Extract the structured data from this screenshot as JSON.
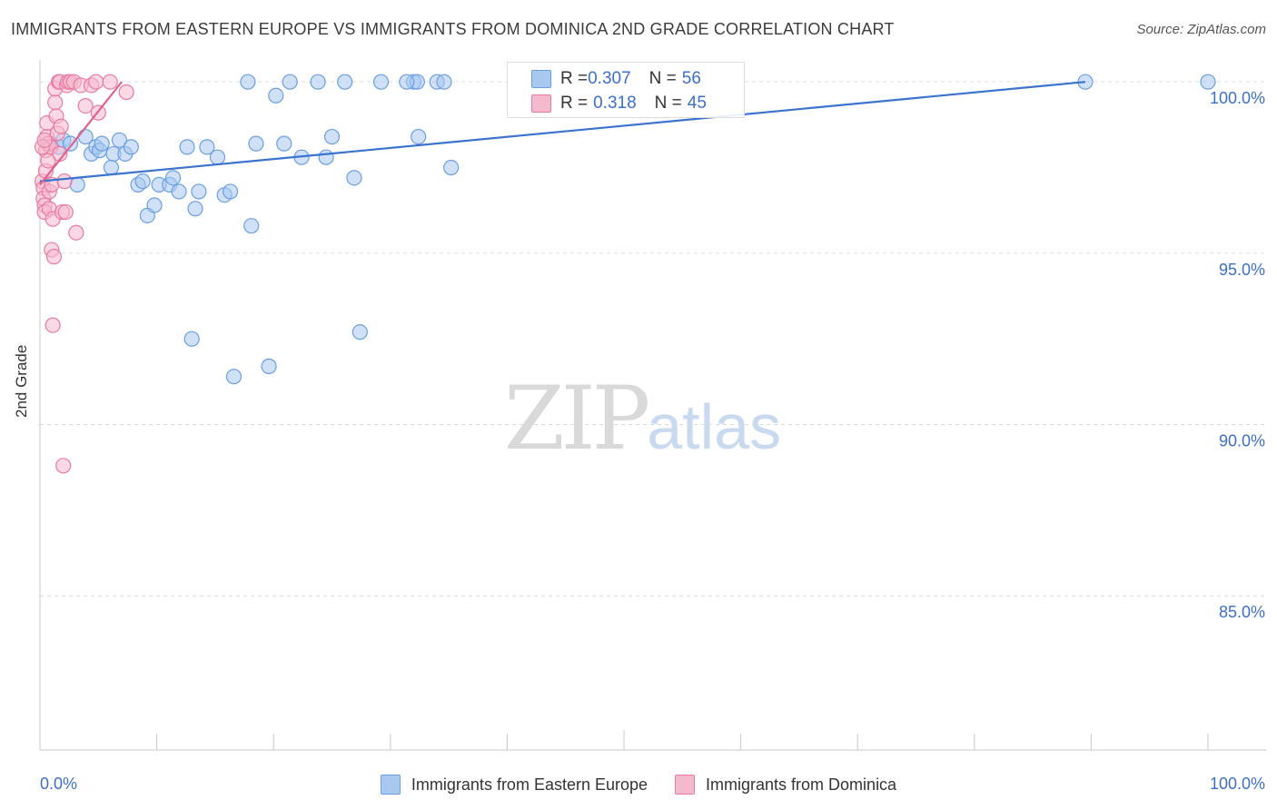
{
  "title": "IMMIGRANTS FROM EASTERN EUROPE VS IMMIGRANTS FROM DOMINICA 2ND GRADE CORRELATION CHART",
  "source": "Source: ZipAtlas.com",
  "watermark": {
    "zip": "ZIP",
    "atlas": "atlas"
  },
  "colors": {
    "blue": "#6a9fe3",
    "blue_fill": "#a9c8f0",
    "pink": "#ea7aa0",
    "pink_fill": "#f5b9cd",
    "trend_blue": "#3b73cf",
    "trend_pink": "#e0608e",
    "axis_text": "#3d6fc8"
  },
  "legend_top": {
    "rows": [
      {
        "r_label": "R = ",
        "r_value": "0.307",
        "n_label": "N = ",
        "n_value": "56"
      },
      {
        "r_label": "R = ",
        "r_value": "0.318",
        "n_label": "N = ",
        "n_value": "45"
      }
    ]
  },
  "chart_data": {
    "type": "scatter",
    "title": "IMMIGRANTS FROM EASTERN EUROPE VS IMMIGRANTS FROM DOMINICA 2ND GRADE CORRELATION CHART",
    "xlabel": "",
    "ylabel": "2nd Grade",
    "xlim": [
      0,
      100
    ],
    "ylim": [
      80.5,
      100.8
    ],
    "x_tick_labels": [
      "0.0%",
      "100.0%"
    ],
    "y_ticks": [
      100,
      95,
      90,
      85
    ],
    "y_tick_labels": [
      "100.0%",
      "95.0%",
      "90.0%",
      "85.0%"
    ],
    "grid": true,
    "series": [
      {
        "name": "Immigrants from Eastern Europe",
        "color": "#6a9fe3",
        "trend": {
          "x0": 0,
          "y0": 97.1,
          "x1": 89.5,
          "y1": 100.0
        },
        "points": [
          [
            0.9,
            98.2
          ],
          [
            1.6,
            98.1
          ],
          [
            2.0,
            98.3
          ],
          [
            2.6,
            98.2
          ],
          [
            3.2,
            97.0
          ],
          [
            3.9,
            98.4
          ],
          [
            4.4,
            97.9
          ],
          [
            4.8,
            98.1
          ],
          [
            5.1,
            98.0
          ],
          [
            5.3,
            98.2
          ],
          [
            6.1,
            97.5
          ],
          [
            6.3,
            97.9
          ],
          [
            6.8,
            98.3
          ],
          [
            7.3,
            97.9
          ],
          [
            7.8,
            98.1
          ],
          [
            8.4,
            97.0
          ],
          [
            8.8,
            97.1
          ],
          [
            9.2,
            96.1
          ],
          [
            9.8,
            96.4
          ],
          [
            10.2,
            97.0
          ],
          [
            11.1,
            97.0
          ],
          [
            11.4,
            97.2
          ],
          [
            11.9,
            96.8
          ],
          [
            12.6,
            98.1
          ],
          [
            13.0,
            92.5
          ],
          [
            13.3,
            96.3
          ],
          [
            13.6,
            96.8
          ],
          [
            14.3,
            98.1
          ],
          [
            15.2,
            97.8
          ],
          [
            15.8,
            96.7
          ],
          [
            16.3,
            96.8
          ],
          [
            16.6,
            91.4
          ],
          [
            18.1,
            95.8
          ],
          [
            18.5,
            98.2
          ],
          [
            19.6,
            91.7
          ],
          [
            20.2,
            99.6
          ],
          [
            20.9,
            98.2
          ],
          [
            21.4,
            100.0
          ],
          [
            22.4,
            97.8
          ],
          [
            24.5,
            97.8
          ],
          [
            25.0,
            98.4
          ],
          [
            26.1,
            100.0
          ],
          [
            26.9,
            97.2
          ],
          [
            27.4,
            92.7
          ],
          [
            29.2,
            100.0
          ],
          [
            32.0,
            100.0
          ],
          [
            32.3,
            100.0
          ],
          [
            32.4,
            98.4
          ],
          [
            34.0,
            100.0
          ],
          [
            34.6,
            100.0
          ],
          [
            35.2,
            97.5
          ],
          [
            17.8,
            100.0
          ],
          [
            23.8,
            100.0
          ],
          [
            31.4,
            100.0
          ],
          [
            89.5,
            100.0
          ],
          [
            100.0,
            100.0
          ]
        ]
      },
      {
        "name": "Immigrants from Dominica",
        "color": "#ea7aa0",
        "trend": {
          "x0": 0,
          "y0": 97.0,
          "x1": 7.0,
          "y1": 100.0
        },
        "points": [
          [
            0.2,
            97.1
          ],
          [
            0.3,
            96.9
          ],
          [
            0.3,
            96.6
          ],
          [
            0.4,
            96.4
          ],
          [
            0.4,
            96.2
          ],
          [
            0.5,
            97.4
          ],
          [
            0.5,
            98.0
          ],
          [
            0.6,
            98.4
          ],
          [
            0.6,
            98.8
          ],
          [
            0.7,
            98.2
          ],
          [
            0.7,
            97.7
          ],
          [
            0.8,
            96.8
          ],
          [
            0.8,
            96.3
          ],
          [
            0.9,
            98.1
          ],
          [
            1.0,
            97.0
          ],
          [
            1.0,
            95.1
          ],
          [
            1.1,
            96.0
          ],
          [
            1.1,
            92.9
          ],
          [
            1.2,
            94.9
          ],
          [
            1.3,
            99.4
          ],
          [
            1.3,
            99.8
          ],
          [
            1.4,
            99.0
          ],
          [
            1.5,
            98.5
          ],
          [
            1.6,
            100.0
          ],
          [
            1.7,
            97.9
          ],
          [
            1.7,
            100.0
          ],
          [
            1.8,
            98.7
          ],
          [
            1.9,
            96.2
          ],
          [
            2.0,
            88.8
          ],
          [
            2.1,
            97.1
          ],
          [
            2.2,
            96.2
          ],
          [
            2.3,
            99.9
          ],
          [
            2.4,
            100.0
          ],
          [
            2.6,
            100.0
          ],
          [
            2.9,
            100.0
          ],
          [
            3.1,
            95.6
          ],
          [
            3.5,
            99.9
          ],
          [
            3.9,
            99.3
          ],
          [
            4.4,
            99.9
          ],
          [
            4.8,
            100.0
          ],
          [
            5.0,
            99.1
          ],
          [
            6.0,
            100.0
          ],
          [
            7.4,
            99.7
          ],
          [
            0.2,
            98.1
          ],
          [
            0.4,
            98.3
          ]
        ]
      }
    ],
    "legend_position": "bottom"
  }
}
